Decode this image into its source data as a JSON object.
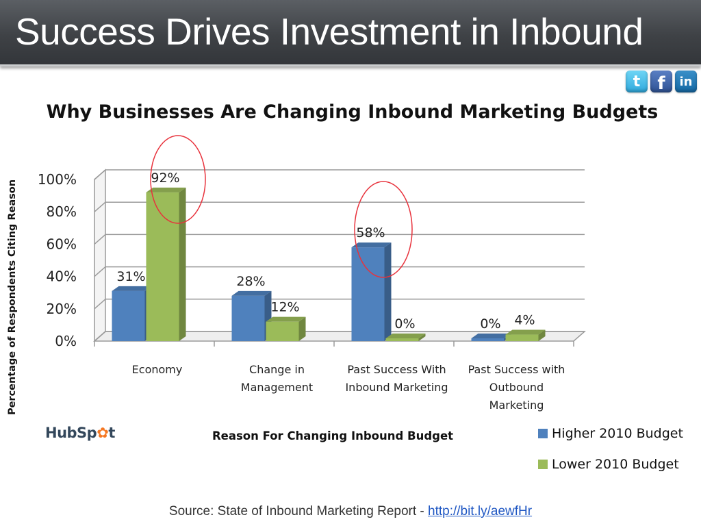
{
  "slide": {
    "title": "Success Drives Investment in Inbound"
  },
  "social": [
    {
      "name": "twitter-icon",
      "glyph": "t"
    },
    {
      "name": "facebook-icon",
      "glyph": "f"
    },
    {
      "name": "linkedin-icon",
      "glyph": "in"
    }
  ],
  "brand": {
    "prefix": "HubSp",
    "sprocket": "✿",
    "suffix": "t"
  },
  "source": {
    "prefix": "Source: State of Inbound Marketing Report - ",
    "link_text": "http://bit.ly/aewfHr"
  },
  "colors": {
    "higher": "#4f81bd",
    "lower": "#9bbb59",
    "highlight_circle": "#e8323c",
    "header": "#3f4246"
  },
  "chart_data": {
    "type": "bar",
    "title": "Why Businesses Are Changing Inbound Marketing Budgets",
    "xlabel": "Reason For Changing Inbound Budget",
    "ylabel": "Percentage of Respondents Citing Reason",
    "ylim": [
      0,
      100
    ],
    "yticks": [
      "0%",
      "20%",
      "40%",
      "60%",
      "80%",
      "100%"
    ],
    "categories": [
      [
        "Economy"
      ],
      [
        "Change in",
        "Management"
      ],
      [
        "Past Success With",
        "Inbound Marketing"
      ],
      [
        "Past Success with",
        "Outbound",
        "Marketing"
      ]
    ],
    "series": [
      {
        "name": "Higher 2010 Budget",
        "values": [
          31,
          28,
          58,
          0
        ],
        "labels": [
          "31%",
          "28%",
          "58%",
          "0%"
        ]
      },
      {
        "name": "Lower 2010 Budget",
        "values": [
          92,
          12,
          0,
          4
        ],
        "labels": [
          "92%",
          "12%",
          "0%",
          "4%"
        ]
      }
    ],
    "grid": true,
    "legend": "bottom-right",
    "highlighted": [
      "Economy / Lower 2010 Budget",
      "Past Success With Inbound Marketing / Higher 2010 Budget"
    ]
  }
}
